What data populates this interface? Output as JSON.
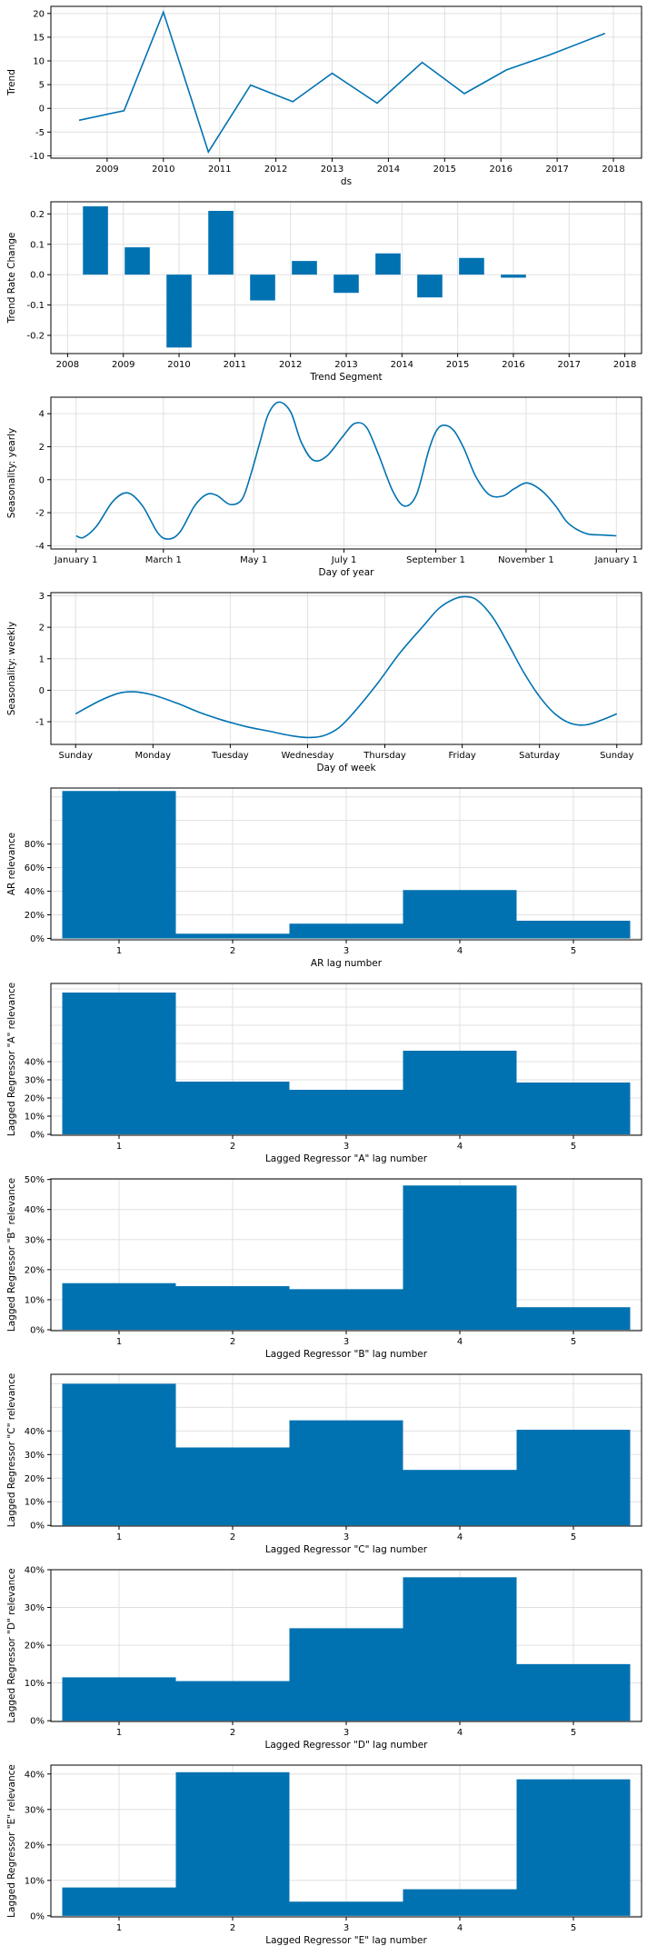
{
  "colors": {
    "bar": "#0072B2",
    "line": "#0072B2",
    "grid": "#e0e0e0",
    "axis": "#000000",
    "background": "#ffffff"
  },
  "chart_data": [
    {
      "id": "trend",
      "type": "line",
      "xlabel": "ds",
      "ylabel": "Trend",
      "x_ticks": [
        "2009",
        "2010",
        "2011",
        "2012",
        "2013",
        "2014",
        "2015",
        "2016",
        "2017",
        "2018"
      ],
      "x_tick_values": [
        2009.0,
        2010.0,
        2011.0,
        2012.0,
        2013.0,
        2014.0,
        2015.0,
        2016.0,
        2017.0,
        2018.0
      ],
      "xlim": [
        2008.0,
        2018.5
      ],
      "y_ticks": [
        "-10",
        "-5",
        "0",
        "5",
        "10",
        "15",
        "20"
      ],
      "y_tick_values": [
        -10,
        -5,
        0,
        5,
        10,
        15,
        20
      ],
      "ylim": [
        -10.5,
        21.5
      ],
      "grid": true,
      "series": [
        {
          "x": [
            2008.5,
            2009.3,
            2010.0,
            2010.8,
            2011.55,
            2012.3,
            2013.0,
            2013.8,
            2014.6,
            2015.35,
            2016.1,
            2016.85,
            2017.85
          ],
          "y": [
            -2.5,
            -0.5,
            20.3,
            -9.2,
            4.9,
            1.4,
            7.4,
            1.1,
            9.7,
            3.1,
            8.1,
            11.2,
            15.8
          ]
        }
      ]
    },
    {
      "id": "trend-rate",
      "type": "bar",
      "xlabel": "Trend Segment",
      "ylabel": "Trend Rate Change",
      "x_ticks": [
        "2008",
        "2009",
        "2010",
        "2011",
        "2012",
        "2013",
        "2014",
        "2015",
        "2016",
        "2017",
        "2018"
      ],
      "x_tick_values": [
        2008.0,
        2009.0,
        2010.0,
        2011.0,
        2012.0,
        2013.0,
        2014.0,
        2015.0,
        2016.0,
        2017.0,
        2018.0
      ],
      "xlim": [
        2007.7,
        2018.3
      ],
      "y_ticks": [
        "-0.2",
        "-0.1",
        "0.0",
        "0.1",
        "0.2"
      ],
      "y_tick_values": [
        -0.2,
        -0.1,
        0.0,
        0.1,
        0.2
      ],
      "ylim": [
        -0.26,
        0.24
      ],
      "grid": true,
      "x": [
        2008.5,
        2009.25,
        2010.0,
        2010.75,
        2011.5,
        2012.25,
        2013.0,
        2013.75,
        2014.5,
        2015.25,
        2016.0
      ],
      "bar_width": 0.45,
      "values": [
        0.225,
        0.09,
        -0.24,
        0.21,
        -0.085,
        0.045,
        -0.06,
        0.07,
        -0.075,
        0.055,
        -0.01
      ]
    },
    {
      "id": "seasonality-yearly",
      "type": "line",
      "xlabel": "Day of year",
      "ylabel": "Seasonality: yearly",
      "x_ticks": [
        "January 1",
        "March 1",
        "May 1",
        "July 1",
        "September 1",
        "November 1",
        "January 1"
      ],
      "x_tick_values": [
        0,
        59,
        120,
        181,
        243,
        304,
        365
      ],
      "xlim": [
        -17,
        382
      ],
      "y_ticks": [
        "-4",
        "-2",
        "0",
        "2",
        "4"
      ],
      "y_tick_values": [
        -4,
        -2,
        0,
        2,
        4
      ],
      "ylim": [
        -4.2,
        5.0
      ],
      "grid": true,
      "series": [
        {
          "x": [
            0,
            5,
            14,
            25,
            35,
            45,
            55,
            62,
            70,
            80,
            88,
            95,
            104,
            112,
            118,
            124,
            130,
            137,
            145,
            152,
            160,
            169,
            180,
            188,
            196,
            204,
            214,
            222,
            230,
            238,
            243,
            248,
            255,
            262,
            270,
            279,
            288,
            296,
            305,
            315,
            324,
            331,
            338,
            346,
            355,
            365
          ],
          "y": [
            -3.4,
            -3.5,
            -2.8,
            -1.3,
            -0.8,
            -1.6,
            -3.2,
            -3.6,
            -3.2,
            -1.6,
            -0.9,
            -0.95,
            -1.5,
            -1.2,
            0.3,
            2.2,
            4.0,
            4.7,
            4.1,
            2.3,
            1.2,
            1.4,
            2.6,
            3.4,
            3.2,
            1.6,
            -0.7,
            -1.6,
            -0.9,
            1.7,
            2.9,
            3.3,
            3.0,
            1.9,
            0.2,
            -0.9,
            -1.0,
            -0.55,
            -0.2,
            -0.7,
            -1.6,
            -2.5,
            -3.0,
            -3.3,
            -3.35,
            -3.4
          ]
        }
      ]
    },
    {
      "id": "seasonality-weekly",
      "type": "line",
      "xlabel": "Day of week",
      "ylabel": "Seasonality: weekly",
      "x_ticks": [
        "Sunday",
        "Monday",
        "Tuesday",
        "Wednesday",
        "Thursday",
        "Friday",
        "Saturday",
        "Sunday"
      ],
      "x_tick_values": [
        0,
        1,
        2,
        3,
        4,
        5,
        6,
        7
      ],
      "xlim": [
        -0.32,
        7.32
      ],
      "y_ticks": [
        "-1",
        "0",
        "1",
        "2",
        "3"
      ],
      "y_tick_values": [
        -1,
        0,
        1,
        2,
        3
      ],
      "ylim": [
        -1.72,
        3.1
      ],
      "grid": true,
      "series": [
        {
          "x": [
            0,
            0.3,
            0.55,
            0.75,
            1.0,
            1.3,
            1.6,
            1.9,
            2.2,
            2.5,
            2.8,
            3.0,
            3.2,
            3.4,
            3.6,
            3.9,
            4.2,
            4.5,
            4.7,
            4.9,
            5.05,
            5.2,
            5.4,
            5.6,
            5.8,
            6.0,
            6.2,
            6.4,
            6.6,
            6.8,
            7.0
          ],
          "y": [
            -0.75,
            -0.35,
            -0.1,
            -0.05,
            -0.15,
            -0.4,
            -0.7,
            -0.95,
            -1.15,
            -1.3,
            -1.45,
            -1.5,
            -1.45,
            -1.2,
            -0.7,
            0.2,
            1.2,
            2.05,
            2.6,
            2.9,
            2.97,
            2.85,
            2.3,
            1.45,
            0.55,
            -0.2,
            -0.75,
            -1.05,
            -1.1,
            -0.95,
            -0.75
          ]
        }
      ]
    },
    {
      "id": "ar-relevance",
      "type": "bar",
      "xlabel": "AR lag number",
      "ylabel": "AR relevance",
      "x_ticks": [
        "1",
        "2",
        "3",
        "4",
        "5"
      ],
      "x_tick_values": [
        1,
        2,
        3,
        4,
        5
      ],
      "xlim": [
        0.4,
        5.6
      ],
      "y_ticks": [
        "0%",
        "20%",
        "40%",
        "60%",
        "80%"
      ],
      "y_tick_values": [
        0,
        0.2,
        0.4,
        0.6,
        0.8
      ],
      "y_grid_values": [
        0,
        0.2,
        0.4,
        0.6,
        0.8,
        1.0,
        1.2
      ],
      "ylim": [
        -0.012,
        1.275
      ],
      "grid": true,
      "x": [
        1,
        2,
        3,
        4,
        5
      ],
      "bar_width": 1.0,
      "values": [
        1.25,
        0.04,
        0.125,
        0.41,
        0.15
      ]
    },
    {
      "id": "lagged-a",
      "type": "bar",
      "xlabel": "Lagged Regressor \"A\" lag number",
      "ylabel": "Lagged Regressor \"A\" relevance",
      "x_ticks": [
        "1",
        "2",
        "3",
        "4",
        "5"
      ],
      "x_tick_values": [
        1,
        2,
        3,
        4,
        5
      ],
      "xlim": [
        0.4,
        5.6
      ],
      "y_ticks": [
        "0%",
        "10%",
        "20%",
        "30%",
        "40%"
      ],
      "y_tick_values": [
        0,
        0.1,
        0.2,
        0.3,
        0.4
      ],
      "y_grid_values": [
        0,
        0.1,
        0.2,
        0.3,
        0.4,
        0.5,
        0.6,
        0.7,
        0.8
      ],
      "ylim": [
        -0.005,
        0.83
      ],
      "grid": true,
      "x": [
        1,
        2,
        3,
        4,
        5
      ],
      "bar_width": 1.0,
      "values": [
        0.78,
        0.29,
        0.245,
        0.46,
        0.285
      ]
    },
    {
      "id": "lagged-b",
      "type": "bar",
      "xlabel": "Lagged Regressor \"B\" lag number",
      "ylabel": "Lagged Regressor \"B\" relevance",
      "x_ticks": [
        "1",
        "2",
        "3",
        "4",
        "5"
      ],
      "x_tick_values": [
        1,
        2,
        3,
        4,
        5
      ],
      "xlim": [
        0.4,
        5.6
      ],
      "y_ticks": [
        "0%",
        "10%",
        "20%",
        "30%",
        "40%",
        "50%"
      ],
      "y_tick_values": [
        0,
        0.1,
        0.2,
        0.3,
        0.4,
        0.5
      ],
      "ylim": [
        -0.003,
        0.502
      ],
      "grid": true,
      "x": [
        1,
        2,
        3,
        4,
        5
      ],
      "bar_width": 1.0,
      "values": [
        0.155,
        0.145,
        0.135,
        0.48,
        0.075
      ]
    },
    {
      "id": "lagged-c",
      "type": "bar",
      "xlabel": "Lagged Regressor \"C\" lag number",
      "ylabel": "Lagged Regressor \"C\" relevance",
      "x_ticks": [
        "1",
        "2",
        "3",
        "4",
        "5"
      ],
      "x_tick_values": [
        1,
        2,
        3,
        4,
        5
      ],
      "xlim": [
        0.4,
        5.6
      ],
      "y_ticks": [
        "0%",
        "10%",
        "20%",
        "30%",
        "40%"
      ],
      "y_tick_values": [
        0,
        0.1,
        0.2,
        0.3,
        0.4
      ],
      "y_grid_values": [
        0,
        0.1,
        0.2,
        0.3,
        0.4,
        0.5,
        0.6
      ],
      "ylim": [
        -0.003,
        0.64
      ],
      "grid": true,
      "x": [
        1,
        2,
        3,
        4,
        5
      ],
      "bar_width": 1.0,
      "values": [
        0.6,
        0.33,
        0.445,
        0.235,
        0.405
      ]
    },
    {
      "id": "lagged-d",
      "type": "bar",
      "xlabel": "Lagged Regressor \"D\" lag number",
      "ylabel": "Lagged Regressor \"D\" relevance",
      "x_ticks": [
        "1",
        "2",
        "3",
        "4",
        "5"
      ],
      "x_tick_values": [
        1,
        2,
        3,
        4,
        5
      ],
      "xlim": [
        0.4,
        5.6
      ],
      "y_ticks": [
        "0%",
        "10%",
        "20%",
        "30%",
        "40%"
      ],
      "y_tick_values": [
        0,
        0.1,
        0.2,
        0.3,
        0.4
      ],
      "ylim": [
        -0.002,
        0.4
      ],
      "grid": true,
      "x": [
        1,
        2,
        3,
        4,
        5
      ],
      "bar_width": 1.0,
      "values": [
        0.115,
        0.105,
        0.245,
        0.38,
        0.15
      ]
    },
    {
      "id": "lagged-e",
      "type": "bar",
      "xlabel": "Lagged Regressor \"E\" lag number",
      "ylabel": "Lagged Regressor \"E\" relevance",
      "x_ticks": [
        "1",
        "2",
        "3",
        "4",
        "5"
      ],
      "x_tick_values": [
        1,
        2,
        3,
        4,
        5
      ],
      "xlim": [
        0.4,
        5.6
      ],
      "y_ticks": [
        "0%",
        "10%",
        "20%",
        "30%",
        "40%"
      ],
      "y_tick_values": [
        0,
        0.1,
        0.2,
        0.3,
        0.4
      ],
      "ylim": [
        -0.003,
        0.425
      ],
      "grid": true,
      "x": [
        1,
        2,
        3,
        4,
        5
      ],
      "bar_width": 1.0,
      "values": [
        0.08,
        0.405,
        0.04,
        0.075,
        0.385
      ]
    }
  ]
}
